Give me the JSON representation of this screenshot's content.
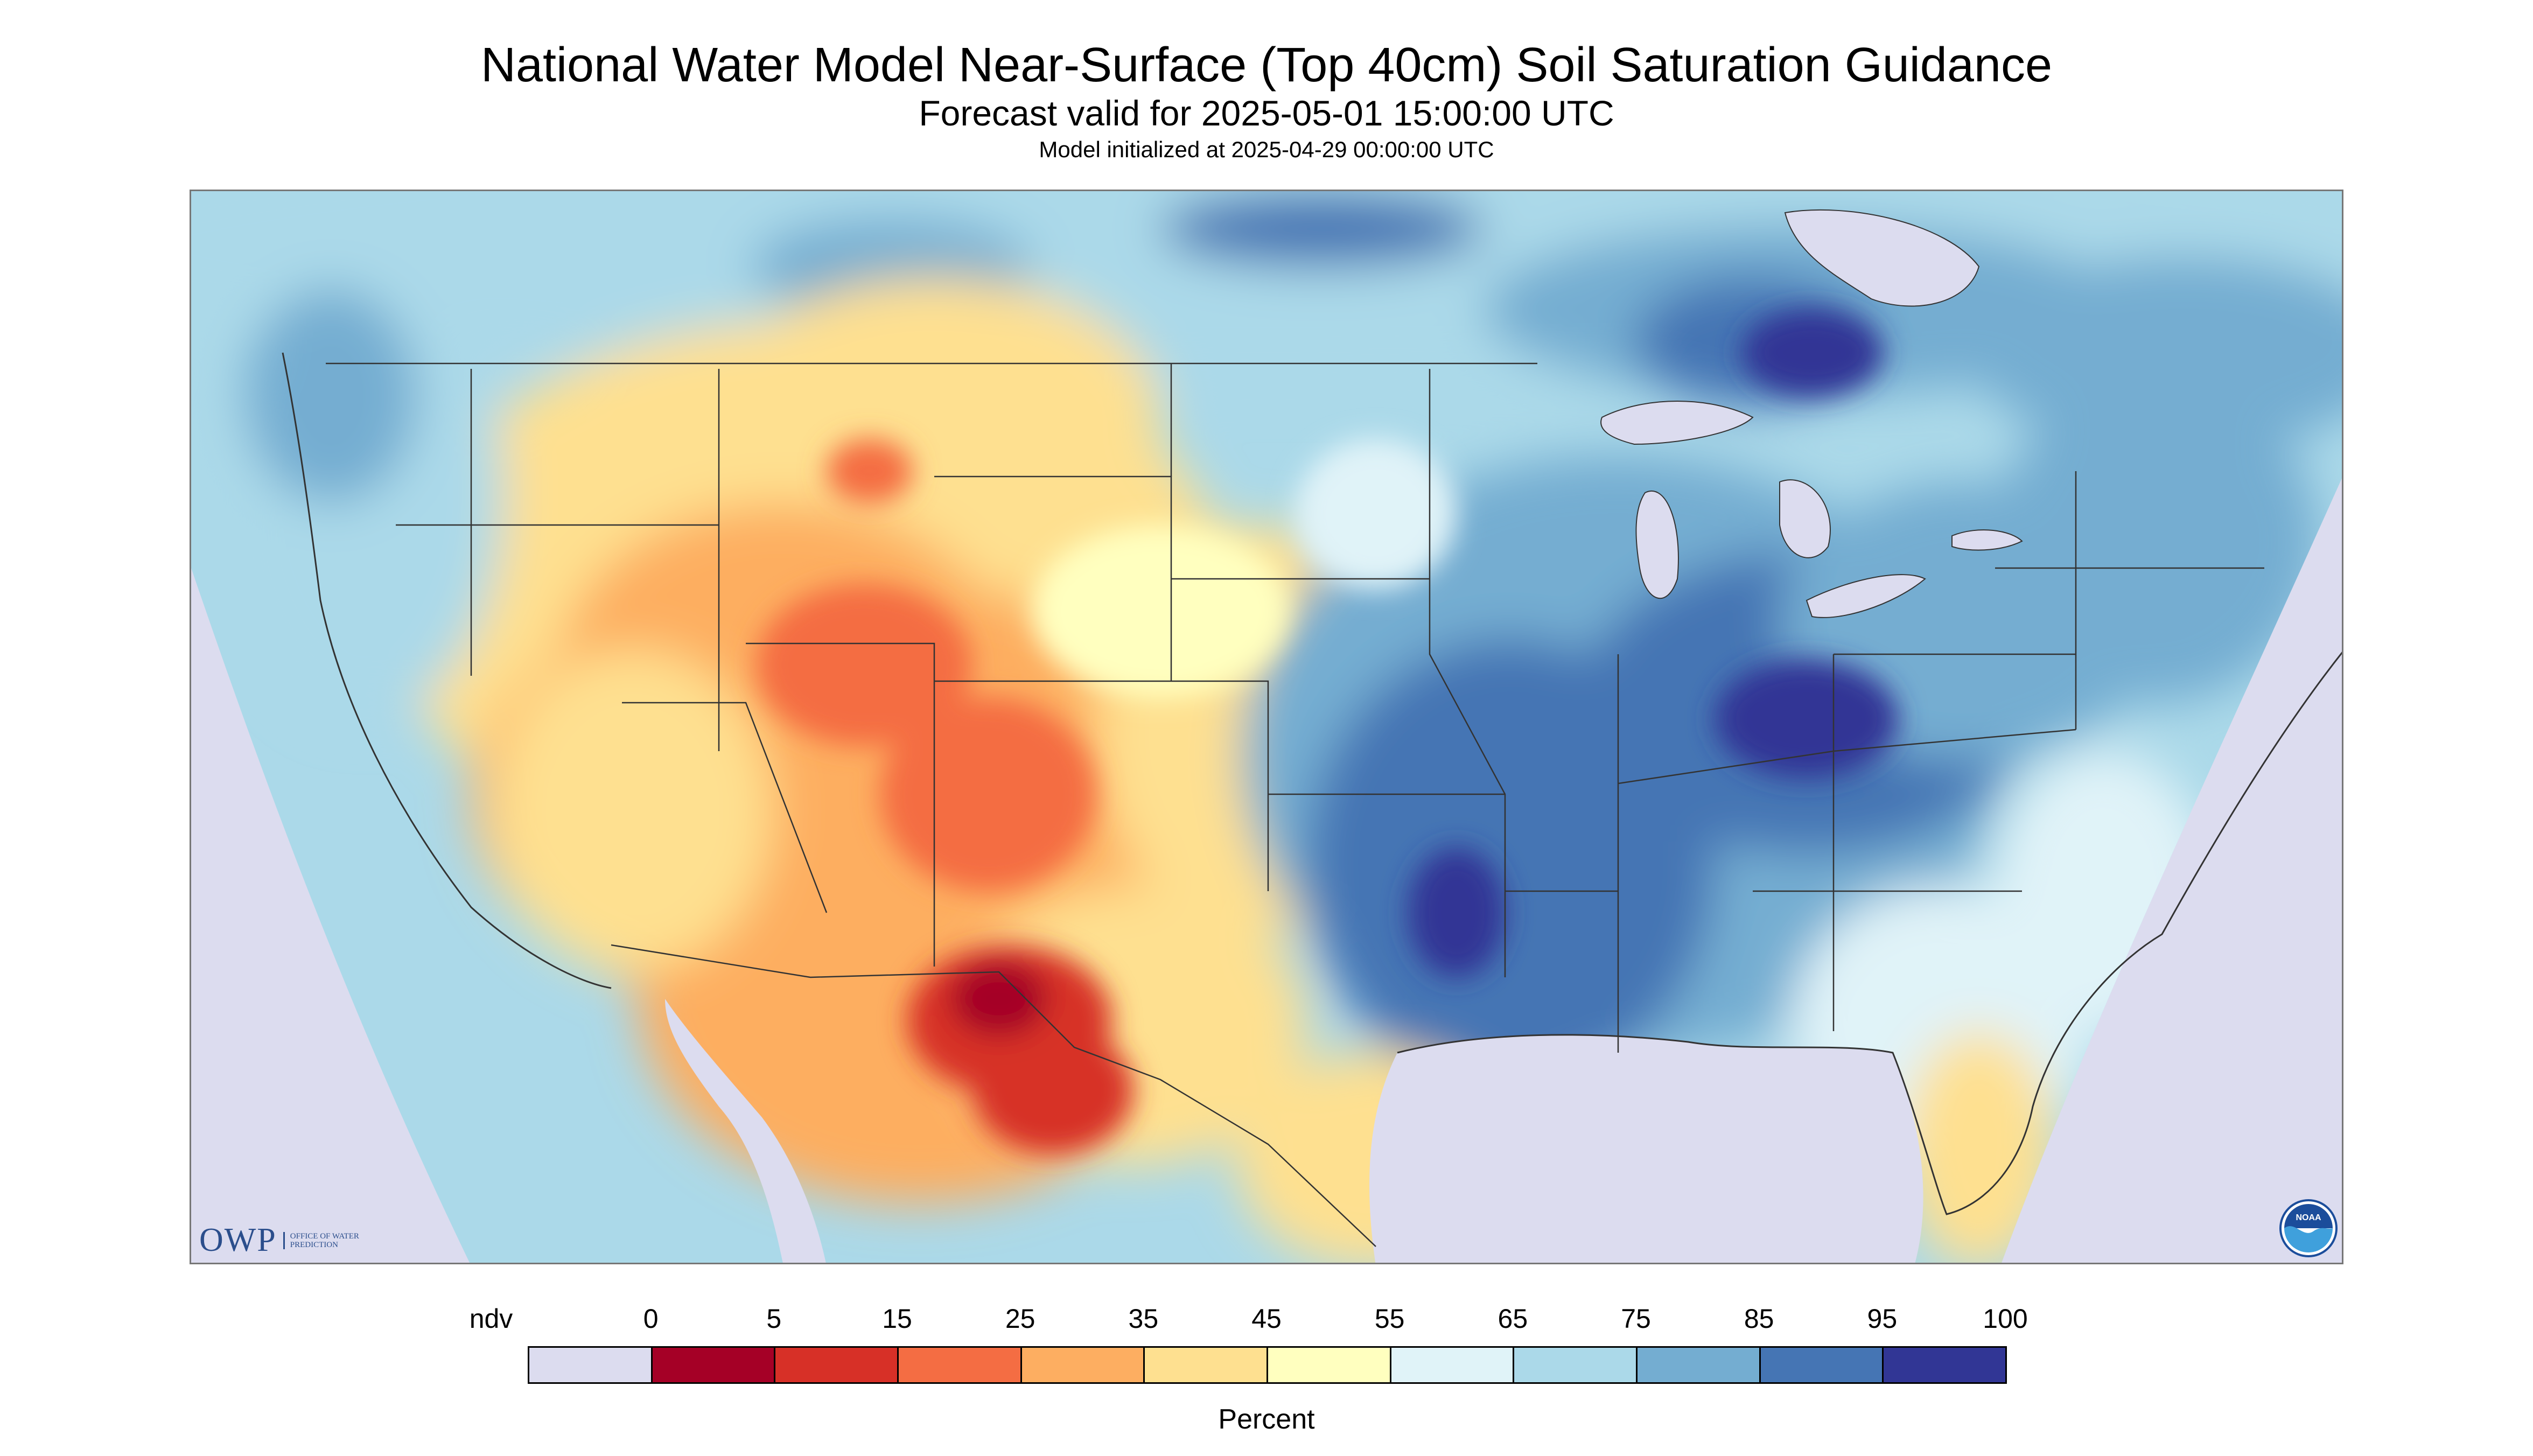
{
  "header": {
    "title": "National Water Model Near-Surface (Top 40cm) Soil Saturation Guidance",
    "subtitle": "Forecast valid for 2025-05-01 15:00:00 UTC",
    "init_line": "Model initialized at 2025-04-29 00:00:00 UTC"
  },
  "logos": {
    "owp_letters": "OWP",
    "owp_text": "OFFICE OF WATER PREDICTION",
    "noaa_text": "NOAA"
  },
  "legend": {
    "label": "Percent",
    "ticks": [
      "ndv",
      "0",
      "5",
      "15",
      "25",
      "35",
      "45",
      "55",
      "65",
      "75",
      "85",
      "95",
      "100"
    ],
    "bins": [
      {
        "range": "ndv",
        "color": "#dcdcef"
      },
      {
        "range": "0-5",
        "color": "#a50026"
      },
      {
        "range": "5-15",
        "color": "#d73027"
      },
      {
        "range": "15-25",
        "color": "#f46d43"
      },
      {
        "range": "25-35",
        "color": "#fdae61"
      },
      {
        "range": "35-45",
        "color": "#fee090"
      },
      {
        "range": "45-55",
        "color": "#ffffbf"
      },
      {
        "range": "55-65",
        "color": "#e0f3f8"
      },
      {
        "range": "65-75",
        "color": "#abd9e9"
      },
      {
        "range": "75-85",
        "color": "#74add1"
      },
      {
        "range": "85-95",
        "color": "#4575b4"
      },
      {
        "range": "95-100",
        "color": "#313695"
      }
    ]
  },
  "map": {
    "background_color": "#dcdcef",
    "water_color": "#dcdcef",
    "border_color": "#333333"
  }
}
